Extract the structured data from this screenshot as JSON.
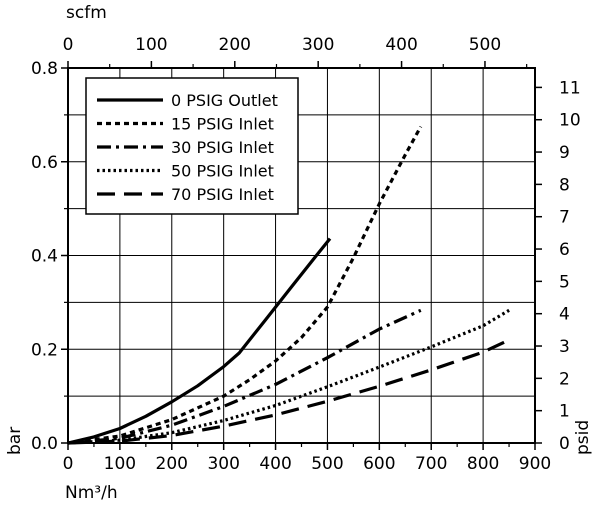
{
  "chart_data": {
    "type": "line",
    "axes": {
      "bottom": {
        "label": "Nm³/h",
        "range": [
          0,
          900
        ],
        "ticks": [
          "0",
          "100",
          "200",
          "300",
          "400",
          "500",
          "600",
          "700",
          "800",
          "900"
        ]
      },
      "top": {
        "label": "scfm",
        "range": [
          0,
          560
        ],
        "ticks": [
          "0",
          "100",
          "200",
          "300",
          "400",
          "500"
        ]
      },
      "left": {
        "label": "bar",
        "range": [
          0,
          0.8
        ],
        "ticks": [
          "0.0",
          "0.2",
          "0.4",
          "0.6",
          "0.8"
        ]
      },
      "right": {
        "label": "psid",
        "range": [
          0,
          11.6
        ],
        "ticks": [
          "0",
          "1",
          "2",
          "3",
          "4",
          "5",
          "6",
          "7",
          "8",
          "9",
          "10",
          "11"
        ]
      }
    },
    "grid": true,
    "legend_position": "top-left",
    "series": [
      {
        "name": "0 PSIG Outlet",
        "dash": "solid",
        "x": [
          0,
          50,
          100,
          150,
          200,
          250,
          300,
          330,
          380,
          430,
          480,
          505
        ],
        "y": [
          0,
          0.013,
          0.031,
          0.057,
          0.088,
          0.122,
          0.163,
          0.192,
          0.262,
          0.332,
          0.402,
          0.436
        ]
      },
      {
        "name": "15 PSIG Inlet",
        "dash": "short-dash",
        "x": [
          0,
          100,
          200,
          300,
          350,
          400,
          450,
          500,
          550,
          600,
          650,
          680
        ],
        "y": [
          0,
          0.015,
          0.05,
          0.1,
          0.135,
          0.175,
          0.225,
          0.29,
          0.395,
          0.51,
          0.615,
          0.675
        ]
      },
      {
        "name": "30 PSIG Inlet",
        "dash": "dash-dot",
        "x": [
          0,
          100,
          200,
          300,
          400,
          500,
          600,
          680
        ],
        "y": [
          0,
          0.01,
          0.038,
          0.078,
          0.125,
          0.182,
          0.243,
          0.283
        ]
      },
      {
        "name": "50 PSIG Inlet",
        "dash": "dotted",
        "x": [
          0,
          100,
          200,
          300,
          400,
          500,
          600,
          700,
          800,
          850
        ],
        "y": [
          0,
          0.006,
          0.022,
          0.048,
          0.08,
          0.12,
          0.162,
          0.205,
          0.25,
          0.283
        ]
      },
      {
        "name": "70 PSIG Inlet",
        "dash": "long-dash",
        "x": [
          0,
          100,
          200,
          300,
          400,
          500,
          600,
          700,
          800,
          850
        ],
        "y": [
          0,
          0.004,
          0.016,
          0.036,
          0.06,
          0.089,
          0.121,
          0.156,
          0.194,
          0.22
        ]
      }
    ]
  }
}
